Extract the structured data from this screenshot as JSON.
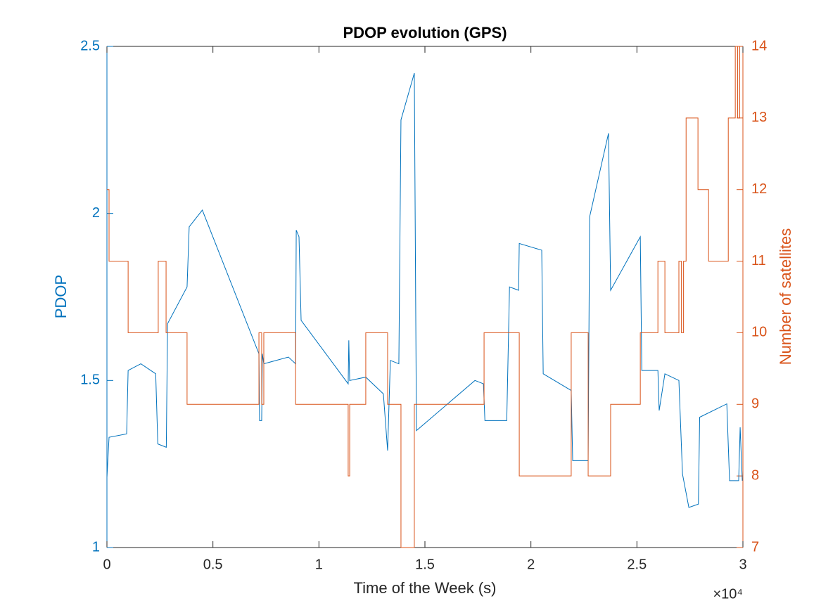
{
  "chart_data": {
    "type": "line",
    "title": "PDOP evolution (GPS)",
    "xlabel": "Time of the Week (s)",
    "ylabel": "PDOP",
    "y2label": "Number of satellites",
    "x_multiplier": "×10⁴",
    "xlim": [
      0,
      30000
    ],
    "xticks": [
      0,
      {
        "value": 5000,
        "label": "0.5"
      },
      {
        "value": 10000,
        "label": "1"
      },
      {
        "value": 15000,
        "label": "1.5"
      },
      {
        "value": 20000,
        "label": "2"
      },
      {
        "value": 25000,
        "label": "2.5"
      },
      {
        "value": 30000,
        "label": "3"
      }
    ],
    "ylim": [
      1,
      2.5
    ],
    "yticks": [
      1,
      1.5,
      2,
      2.5
    ],
    "y2lim": [
      7,
      14
    ],
    "y2ticks": [
      7,
      8,
      9,
      10,
      11,
      12,
      13,
      14
    ],
    "series": [
      {
        "color": "#0072BD",
        "x": [
          0,
          100,
          930,
          1000,
          1600,
          2300,
          2400,
          2800,
          2860,
          3780,
          3880,
          4500,
          7170,
          7200,
          7300,
          7330,
          7400,
          8560,
          8900,
          8930,
          9060,
          9160,
          11380,
          11410,
          11450,
          12210,
          13040,
          13240,
          13370,
          13770,
          13870,
          14500,
          14600,
          17360,
          17760,
          17830,
          18860,
          18990,
          19420,
          19450,
          20510,
          20580,
          21900,
          21970,
          22700,
          22770,
          23660,
          23760,
          25160,
          25230,
          25990,
          26050,
          26320,
          26980,
          27150,
          27450,
          27900,
          27960,
          29240,
          29370,
          29800,
          29870,
          29970
        ],
        "values": [
          1.21,
          1.33,
          1.34,
          1.53,
          1.55,
          1.52,
          1.31,
          1.3,
          1.67,
          1.78,
          1.96,
          2.01,
          1.58,
          1.38,
          1.38,
          1.58,
          1.55,
          1.57,
          1.55,
          1.95,
          1.93,
          1.68,
          1.49,
          1.62,
          1.5,
          1.51,
          1.46,
          1.29,
          1.56,
          1.55,
          2.28,
          2.42,
          1.35,
          1.5,
          1.49,
          1.38,
          1.38,
          1.78,
          1.77,
          1.91,
          1.89,
          1.52,
          1.47,
          1.26,
          1.26,
          1.99,
          2.24,
          1.77,
          1.93,
          1.53,
          1.53,
          1.41,
          1.52,
          1.5,
          1.22,
          1.12,
          1.13,
          1.39,
          1.43,
          1.2,
          1.2,
          1.36,
          1.2
        ]
      },
      {
        "color": "#D95319",
        "axis": "y2",
        "x": [
          0,
          100,
          100,
          1000,
          1000,
          2420,
          2420,
          2790,
          2790,
          3780,
          3780,
          7170,
          7170,
          7300,
          7300,
          7400,
          7400,
          8900,
          8900,
          11380,
          11380,
          11450,
          11450,
          12210,
          12210,
          13240,
          13240,
          13870,
          13870,
          14500,
          14500,
          17790,
          17790,
          19450,
          19450,
          21900,
          21900,
          22700,
          22700,
          23760,
          23760,
          25160,
          25160,
          25990,
          25990,
          26320,
          26320,
          26980,
          26980,
          27100,
          27100,
          27200,
          27200,
          27320,
          27320,
          27880,
          27880,
          28380,
          28380,
          29310,
          29310,
          29640,
          29640,
          29750,
          29750,
          29850,
          29850,
          29970
        ],
        "values": [
          12,
          12,
          11,
          11,
          10,
          10,
          11,
          11,
          10,
          10,
          9,
          9,
          10,
          10,
          9,
          9,
          10,
          10,
          9,
          9,
          8,
          8,
          9,
          9,
          10,
          10,
          9,
          9,
          7,
          7,
          9,
          9,
          10,
          10,
          8,
          8,
          10,
          10,
          8,
          8,
          9,
          9,
          10,
          10,
          11,
          11,
          10,
          10,
          11,
          11,
          10,
          10,
          11,
          11,
          13,
          13,
          12,
          12,
          11,
          11,
          13,
          13,
          14,
          14,
          13,
          13,
          14,
          14
        ]
      }
    ]
  }
}
